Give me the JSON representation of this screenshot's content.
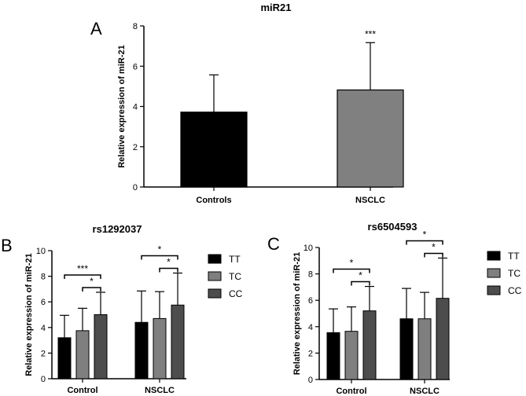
{
  "chart_data": [
    {
      "panel": "A",
      "type": "bar",
      "title": "miR21",
      "xlabel": "",
      "ylabel": "Relative expression of miR-21",
      "ylim": [
        0,
        8
      ],
      "yticks": [
        0,
        2,
        4,
        6,
        8
      ],
      "categories": [
        "Controls",
        "NSCLC"
      ],
      "values": [
        3.72,
        4.82
      ],
      "errors": [
        1.85,
        2.35
      ],
      "colors": [
        "#000000",
        "#808080"
      ],
      "significance": [
        {
          "over": "NSCLC",
          "label": "***"
        }
      ]
    },
    {
      "panel": "B",
      "type": "bar",
      "title": "rs1292037",
      "ylabel": "Relative expression of miR-21",
      "ylim": [
        0,
        10
      ],
      "yticks": [
        0,
        2,
        4,
        6,
        8,
        10
      ],
      "categories": [
        "Control",
        "NSCLC"
      ],
      "series": [
        {
          "name": "TT",
          "color": "#000000",
          "values": [
            3.2,
            4.4
          ],
          "errors": [
            1.75,
            2.45
          ]
        },
        {
          "name": "TC",
          "color": "#7f7f7f",
          "values": [
            3.75,
            4.7
          ],
          "errors": [
            1.75,
            2.1
          ]
        },
        {
          "name": "CC",
          "color": "#4d4d4d",
          "values": [
            5.0,
            5.75
          ],
          "errors": [
            1.75,
            2.5
          ]
        }
      ],
      "brackets": [
        {
          "category": "Control",
          "from": "TT",
          "to": "CC",
          "label": "***"
        },
        {
          "category": "Control",
          "from": "TC",
          "to": "CC",
          "label": "*"
        },
        {
          "category": "NSCLC",
          "from": "TT",
          "to": "CC",
          "label": "*"
        },
        {
          "category": "NSCLC",
          "from": "TC",
          "to": "CC",
          "label": "*"
        }
      ],
      "legend": "right"
    },
    {
      "panel": "C",
      "type": "bar",
      "title": "rs6504593",
      "ylabel": "Relative expression of miR-21",
      "ylim": [
        0,
        10
      ],
      "yticks": [
        0,
        2,
        4,
        6,
        8,
        10
      ],
      "categories": [
        "Control",
        "NSCLC"
      ],
      "series": [
        {
          "name": "TT",
          "color": "#000000",
          "values": [
            3.55,
            4.6
          ],
          "errors": [
            1.8,
            2.3
          ]
        },
        {
          "name": "TC",
          "color": "#7f7f7f",
          "values": [
            3.65,
            4.6
          ],
          "errors": [
            1.85,
            2.0
          ]
        },
        {
          "name": "CC",
          "color": "#4d4d4d",
          "values": [
            5.2,
            6.15
          ],
          "errors": [
            1.85,
            3.05
          ]
        }
      ],
      "brackets": [
        {
          "category": "Control",
          "from": "TT",
          "to": "CC",
          "label": "*"
        },
        {
          "category": "Control",
          "from": "TC",
          "to": "CC",
          "label": "*"
        },
        {
          "category": "NSCLC",
          "from": "TT",
          "to": "CC",
          "label": "*"
        },
        {
          "category": "NSCLC",
          "from": "TC",
          "to": "CC",
          "label": "*"
        }
      ],
      "legend": "right"
    }
  ]
}
